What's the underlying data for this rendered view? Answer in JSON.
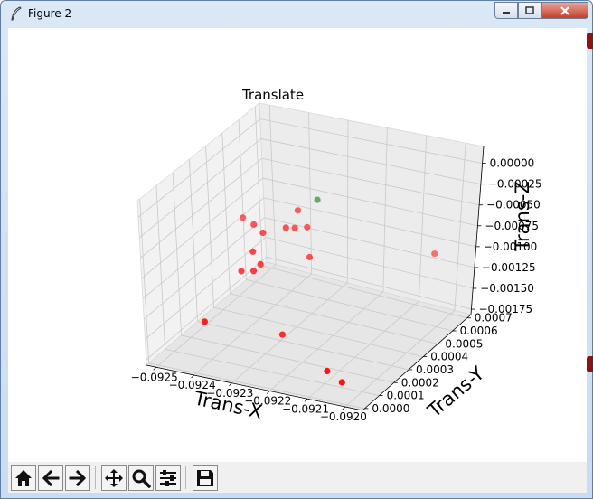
{
  "window": {
    "title": "Figure 2"
  },
  "chart_data": {
    "type": "scatter",
    "projection": "3d",
    "title": "Translate",
    "xlabel": "Trans-X",
    "ylabel": "Trans-Y",
    "zlabel": "Trans-Z",
    "grid": true,
    "xlim": [
      -0.0925,
      -0.0919
    ],
    "ylim": [
      0.0,
      0.0007
    ],
    "zlim": [
      -0.00175,
      0.0
    ],
    "xticks": [
      "−0.0925",
      "−0.0924",
      "−0.0923",
      "−0.0922",
      "−0.0921",
      "−0.0920"
    ],
    "yticks": [
      "0.0000",
      "0.0001",
      "0.0002",
      "0.0003",
      "0.0004",
      "0.0005",
      "0.0006",
      "0.0007"
    ],
    "zticks": [
      "0.00000",
      "−0.00025",
      "−0.00050",
      "−0.00075",
      "−0.00100",
      "−0.00125",
      "−0.00150",
      "−0.00175"
    ],
    "series": [
      {
        "color": "#ff0000",
        "points": [
          {
            "x": -0.09247,
            "y": 0.00052,
            "z": -0.00095
          },
          {
            "x": -0.09241,
            "y": 0.00046,
            "z": -0.00088
          },
          {
            "x": -0.09236,
            "y": 0.00041,
            "z": -0.00085
          },
          {
            "x": -0.09231,
            "y": 0.00044,
            "z": -0.0008
          },
          {
            "x": -0.0923,
            "y": 0.00047,
            "z": -0.00084
          },
          {
            "x": -0.09228,
            "y": 0.0005,
            "z": -0.00086
          },
          {
            "x": -0.09231,
            "y": 0.00051,
            "z": -0.00072
          },
          {
            "x": -0.09239,
            "y": 0.00034,
            "z": -0.00118
          },
          {
            "x": -0.09235,
            "y": 0.00033,
            "z": -0.00113
          },
          {
            "x": -0.09234,
            "y": 0.00035,
            "z": -0.00108
          },
          {
            "x": -0.09236,
            "y": 0.00035,
            "z": -0.00096
          },
          {
            "x": -0.09225,
            "y": 0.00045,
            "z": -0.00108
          },
          {
            "x": -0.09242,
            "y": 0.00018,
            "z": -0.0015
          },
          {
            "x": -0.09224,
            "y": 0.00026,
            "z": -0.00161
          },
          {
            "x": -0.09197,
            "y": 0.0006,
            "z": -0.00103
          },
          {
            "x": -0.09205,
            "y": 0.00012,
            "z": -0.00163
          },
          {
            "x": -0.092,
            "y": 0.0001,
            "z": -0.00168
          }
        ]
      },
      {
        "color": "#008000",
        "points": [
          {
            "x": -0.09227,
            "y": 0.00054,
            "z": -0.00062
          }
        ]
      }
    ]
  },
  "toolbar": {
    "buttons": [
      {
        "icon": "home-icon"
      },
      {
        "icon": "arrow-left-icon"
      },
      {
        "icon": "arrow-right-icon"
      },
      {
        "icon": "move-icon"
      },
      {
        "icon": "zoom-icon"
      },
      {
        "icon": "sliders-icon"
      },
      {
        "icon": "save-icon"
      }
    ]
  }
}
